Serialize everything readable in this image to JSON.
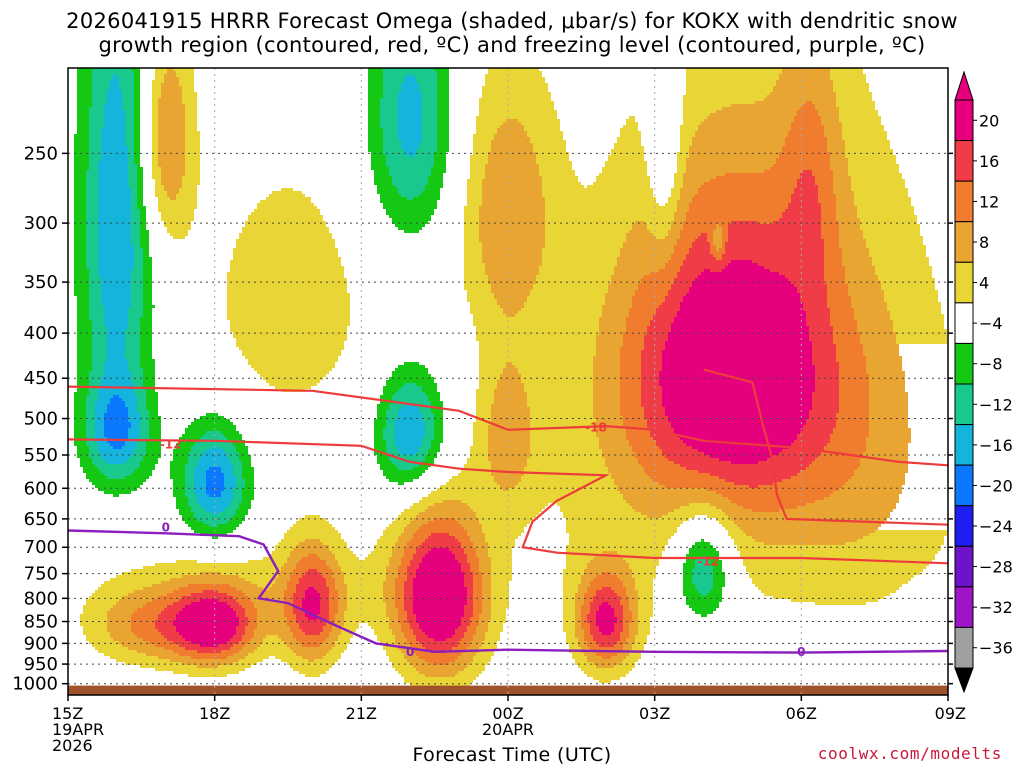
{
  "title_line1": "2026041915 HRRR Forecast Omega (shaded, μbar/s) for KOKX with dendritic snow",
  "title_line2": "growth region (contoured, red, ºC) and freezing level (contoured, purple, ºC)",
  "credit": "coolwx.com/modelts",
  "chart_data": {
    "type": "contour",
    "title": "2026041915 HRRR Forecast Omega (shaded, μbar/s) for KOKX with dendritic snow growth region (contoured, red, ºC) and freezing level (contoured, purple, ºC)",
    "xlabel": "Forecast Time (UTC)",
    "ylabel": "",
    "x_range_hours": [
      0,
      18
    ],
    "x_ticks": [
      {
        "hour": 0,
        "lines": [
          "15Z",
          "19APR",
          "2026"
        ]
      },
      {
        "hour": 3,
        "lines": [
          "18Z"
        ]
      },
      {
        "hour": 6,
        "lines": [
          "21Z"
        ]
      },
      {
        "hour": 9,
        "lines": [
          "00Z",
          "20APR"
        ]
      },
      {
        "hour": 12,
        "lines": [
          "03Z"
        ]
      },
      {
        "hour": 15,
        "lines": [
          "06Z"
        ]
      },
      {
        "hour": 18,
        "lines": [
          "09Z"
        ]
      }
    ],
    "y_range_hPa": [
      200,
      1030
    ],
    "y_ticks": [
      250,
      300,
      350,
      400,
      450,
      500,
      550,
      600,
      650,
      700,
      750,
      800,
      850,
      900,
      950,
      1000
    ],
    "colorbar": {
      "labels": [
        "20",
        "16",
        "12",
        "8",
        "4",
        "−4",
        "−8",
        "−12",
        "−16",
        "−20",
        "−24",
        "−28",
        "−32",
        "−36"
      ],
      "colors": [
        "#e6007d",
        "#f03c46",
        "#ef7d2d",
        "#e9a532",
        "#e9d535",
        "#ffffff",
        "#14c814",
        "#18c88c",
        "#14b4dc",
        "#0a78ff",
        "#1e1ef0",
        "#6e14c8",
        "#a014c8",
        "#a0a0a0"
      ]
    },
    "omega_blobs": [
      {
        "hour": 1.0,
        "p": 300,
        "dh": 0.75,
        "dp": 190,
        "v": -16
      },
      {
        "hour": 1.0,
        "p": 520,
        "dh": 0.7,
        "dp": 75,
        "v": -14
      },
      {
        "hour": 3.0,
        "p": 590,
        "dh": 0.7,
        "dp": 90,
        "v": -18
      },
      {
        "hour": 7.0,
        "p": 230,
        "dh": 0.9,
        "dp": 80,
        "v": -14
      },
      {
        "hour": 7.0,
        "p": 520,
        "dh": 0.7,
        "dp": 85,
        "v": -17
      },
      {
        "hour": 12.2,
        "p": 230,
        "dh": 0.35,
        "dp": 100,
        "v": -9
      },
      {
        "hour": 13.0,
        "p": 740,
        "dh": 0.6,
        "dp": 110,
        "v": -15
      },
      {
        "hour": 13.3,
        "p": 315,
        "dh": 0.15,
        "dp": 18,
        "v": -8
      },
      {
        "hour": 18.0,
        "p": 820,
        "dh": 0.6,
        "dp": 40,
        "v": -9
      },
      {
        "hour": 1.6,
        "p": 860,
        "dh": 1.2,
        "dp": 90,
        "v": 11
      },
      {
        "hour": 3.0,
        "p": 860,
        "dh": 0.9,
        "dp": 90,
        "v": 22
      },
      {
        "hour": 5.0,
        "p": 820,
        "dh": 0.6,
        "dp": 130,
        "v": 18
      },
      {
        "hour": 7.6,
        "p": 800,
        "dh": 0.9,
        "dp": 170,
        "v": 26
      },
      {
        "hour": 11.0,
        "p": 850,
        "dh": 0.6,
        "dp": 110,
        "v": 20
      },
      {
        "hour": 2.0,
        "p": 240,
        "dh": 0.55,
        "dp": 70,
        "v": 13
      },
      {
        "hour": 4.5,
        "p": 370,
        "dh": 2.0,
        "dp": 150,
        "v": 6
      },
      {
        "hour": 9.0,
        "p": 290,
        "dh": 1.0,
        "dp": 100,
        "v": 11
      },
      {
        "hour": 9.0,
        "p": 520,
        "dh": 0.6,
        "dp": 110,
        "v": 9
      },
      {
        "hour": 13.5,
        "p": 440,
        "dh": 2.2,
        "dp": 170,
        "v": 22
      },
      {
        "hour": 14.5,
        "p": 380,
        "dh": 3.5,
        "dp": 300,
        "v": 5
      },
      {
        "hour": 12.5,
        "p": 640,
        "dh": 4.0,
        "dp": 260,
        "v": 4
      },
      {
        "hour": 15.2,
        "p": 260,
        "dh": 0.6,
        "dp": 90,
        "v": 7
      },
      {
        "hour": 16.5,
        "p": 600,
        "dh": 2.0,
        "dp": 250,
        "v": 5
      },
      {
        "hour": 4.0,
        "p": 780,
        "dh": 3.5,
        "dp": 110,
        "v": 4
      }
    ],
    "dgz_contours": [
      {
        "label": "-18",
        "points": [
          [
            0,
            460
          ],
          [
            5,
            465
          ],
          [
            8,
            490
          ],
          [
            9,
            515
          ],
          [
            11,
            510
          ],
          [
            12,
            515
          ],
          [
            13,
            530
          ],
          [
            15,
            540
          ],
          [
            16,
            550
          ],
          [
            17,
            560
          ],
          [
            18,
            565
          ]
        ]
      },
      {
        "label": "-12",
        "points": [
          [
            0,
            528
          ],
          [
            3,
            530
          ],
          [
            6,
            537
          ],
          [
            7,
            560
          ],
          [
            8,
            570
          ],
          [
            9,
            575
          ],
          [
            11,
            580
          ],
          [
            10,
            620
          ],
          [
            9.5,
            655
          ],
          [
            9.3,
            700
          ],
          [
            10,
            710
          ],
          [
            12,
            720
          ],
          [
            15,
            720
          ],
          [
            18,
            730
          ]
        ]
      },
      {
        "label": "-12",
        "points": [
          [
            13,
            440
          ],
          [
            14,
            455
          ],
          [
            14.2,
            505
          ],
          [
            14.4,
            555
          ],
          [
            14.5,
            610
          ],
          [
            14.7,
            650
          ],
          [
            18,
            660
          ]
        ]
      }
    ],
    "freezing_contour": {
      "label": "0",
      "points": [
        [
          0,
          670
        ],
        [
          2,
          675
        ],
        [
          3.5,
          680
        ],
        [
          4,
          695
        ],
        [
          4.3,
          745
        ],
        [
          3.9,
          800
        ],
        [
          4.5,
          810
        ],
        [
          5.5,
          860
        ],
        [
          6.3,
          900
        ],
        [
          7.5,
          920
        ],
        [
          9,
          915
        ],
        [
          12,
          920
        ],
        [
          15,
          922
        ],
        [
          18,
          918
        ]
      ]
    },
    "label_positions": [
      {
        "text": "-12",
        "hour": 2.1,
        "p": 535
      },
      {
        "text": "-18",
        "hour": 10.8,
        "p": 512
      },
      {
        "text": "-12",
        "hour": 13.1,
        "p": 727
      },
      {
        "text": "0",
        "hour": 2.0,
        "p": 665
      },
      {
        "text": "0",
        "hour": 7.0,
        "p": 920
      },
      {
        "text": "0",
        "hour": 15.0,
        "p": 920
      }
    ]
  },
  "x_axis_title": "Forecast Time (UTC)"
}
